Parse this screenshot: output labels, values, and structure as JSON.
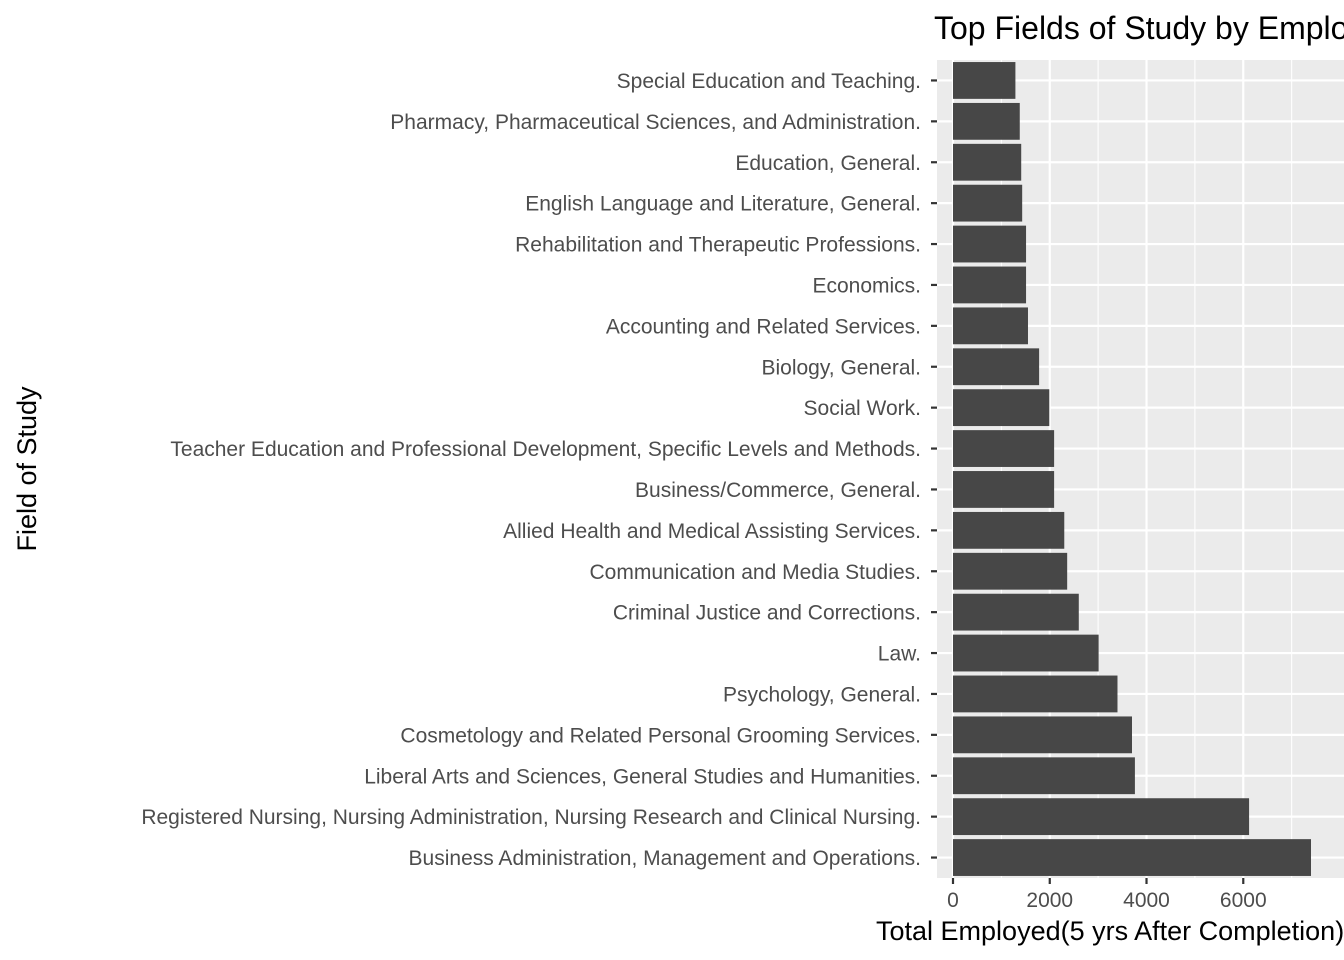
{
  "chart_data": {
    "type": "bar",
    "orientation": "horizontal",
    "title": "Top Fields of Study by Employment",
    "xlabel": "Total Employed(5 yrs After Completion)",
    "ylabel": "Field of Study",
    "xlim": [
      0,
      7400
    ],
    "xticks": [
      0,
      2000,
      4000,
      6000
    ],
    "grid": true,
    "categories": [
      "Business Administration, Management and Operations.",
      "Registered Nursing, Nursing Administration, Nursing Research and Clinical Nursing.",
      "Liberal Arts and Sciences, General Studies and Humanities.",
      "Cosmetology and Related Personal Grooming Services.",
      "Psychology, General.",
      "Law.",
      "Criminal Justice and Corrections.",
      "Communication and Media Studies.",
      "Allied Health and Medical Assisting Services.",
      "Business/Commerce, General.",
      "Teacher Education and Professional Development, Specific Levels and Methods.",
      "Social Work.",
      "Biology, General.",
      "Accounting and Related Services.",
      "Economics.",
      "Rehabilitation and Therapeutic Professions.",
      "English Language and Literature, General.",
      "Education, General.",
      "Pharmacy, Pharmaceutical Sciences, and Administration.",
      "Special Education and Teaching."
    ],
    "values": [
      7400,
      6120,
      3760,
      3700,
      3400,
      3010,
      2600,
      2360,
      2300,
      2090,
      2090,
      1990,
      1780,
      1550,
      1510,
      1510,
      1430,
      1410,
      1380,
      1290
    ]
  },
  "colors": {
    "bar": "#474747",
    "panel": "#ebebeb",
    "grid_major": "#ffffff",
    "tick": "#333333"
  }
}
